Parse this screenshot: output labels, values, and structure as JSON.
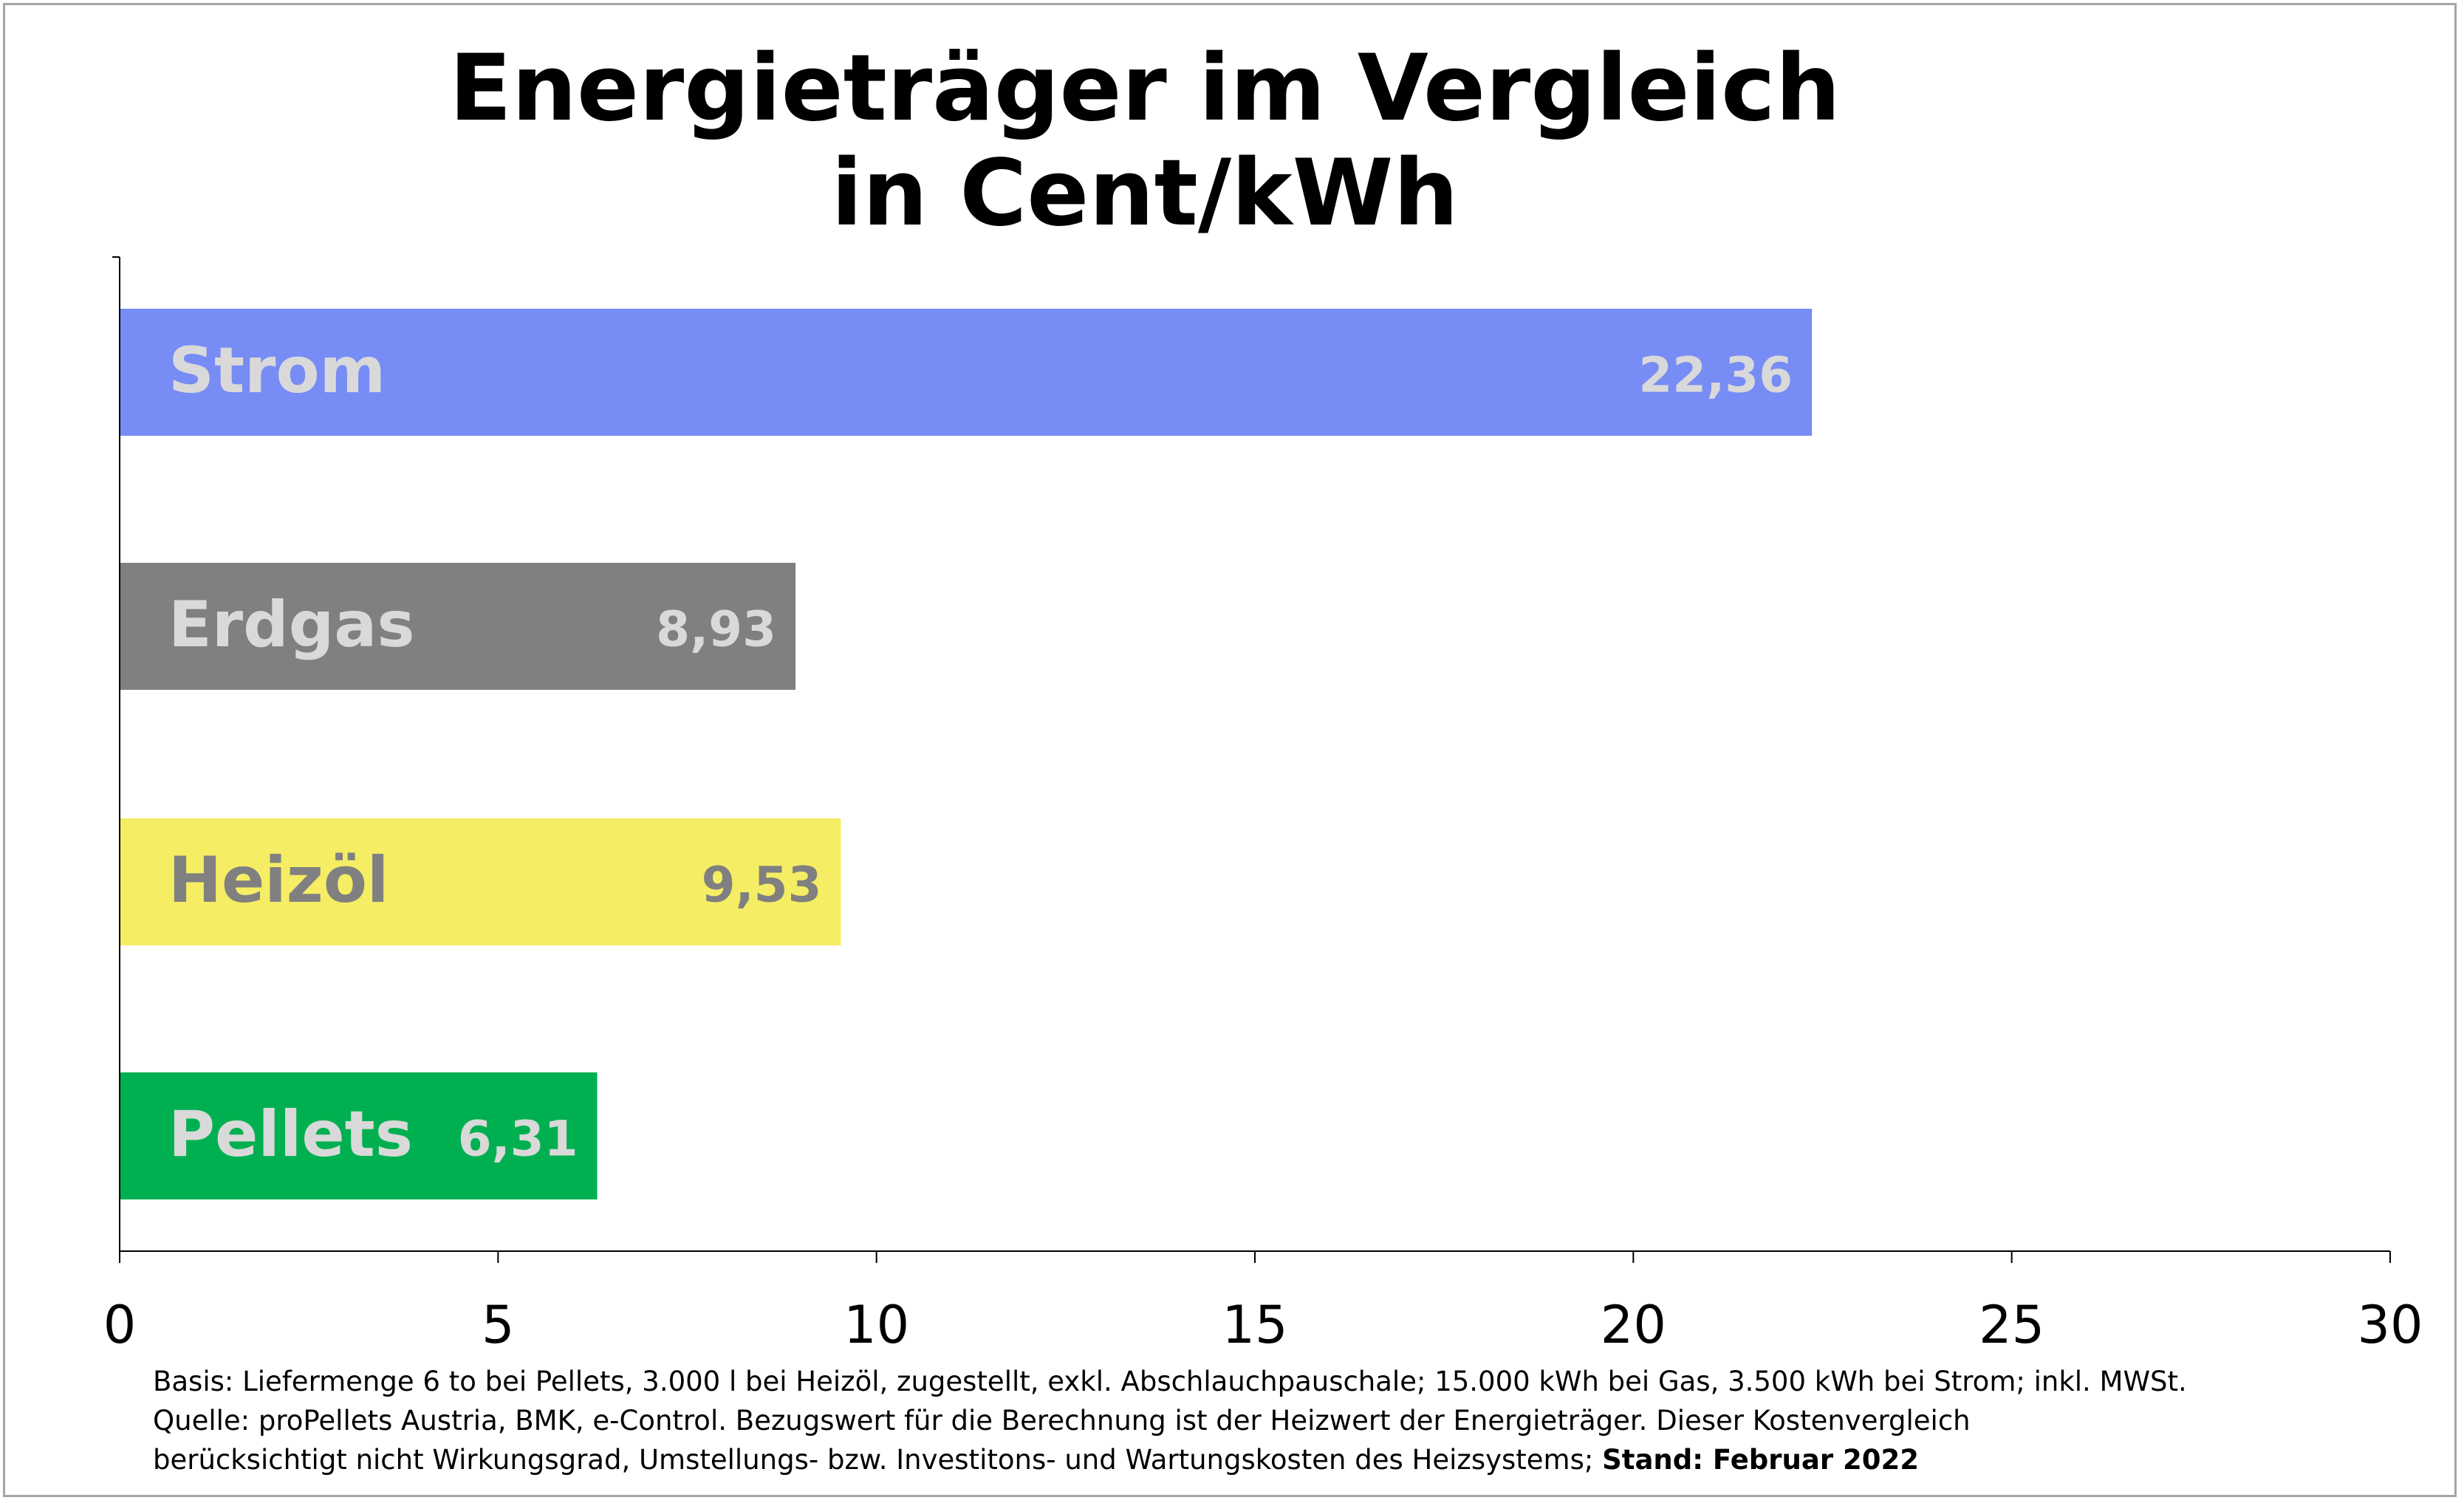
{
  "title_line1": "Energieträger im Vergleich",
  "title_line2": "in Cent/kWh",
  "chart_data": {
    "type": "bar",
    "orientation": "horizontal",
    "categories": [
      "Strom",
      "Erdgas",
      "Heizöl",
      "Pellets"
    ],
    "values": [
      22.36,
      8.93,
      9.53,
      6.31
    ],
    "value_labels": [
      "22,36",
      "8,93",
      "9,53",
      "6,31"
    ],
    "bar_colors": [
      "#778CF5",
      "#808080",
      "#F5ED64",
      "#00B050"
    ],
    "category_label_colors": [
      "#D9D9D9",
      "#D9D9D9",
      "#808080",
      "#D9D9D9"
    ],
    "value_label_colors": [
      "#D9D9D9",
      "#D9D9D9",
      "#808080",
      "#D9D9D9"
    ],
    "xlim": [
      0,
      30
    ],
    "xticks": [
      0,
      5,
      10,
      15,
      20,
      25,
      30
    ],
    "xlabel": "",
    "ylabel": "",
    "grid": false,
    "legend": "none"
  },
  "footnote": {
    "line1": "Basis: Liefermenge 6 to bei Pellets, 3.000 l bei Heizöl, zugestellt, exkl. Abschlauchpauschale; 15.000 kWh bei Gas, 3.500 kWh bei Strom; inkl. MWSt.",
    "line2": "Quelle: proPellets Austria, BMK, e-Control. Bezugswert für die Berechnung ist der Heizwert der Energieträger. Dieser Kostenvergleich",
    "line3_regular": "berücksichtigt nicht Wirkungsgrad, Umstellungs- bzw. Investitons- und Wartungskosten des Heizsystems; ",
    "line3_bold": "Stand: Februar 2022"
  }
}
